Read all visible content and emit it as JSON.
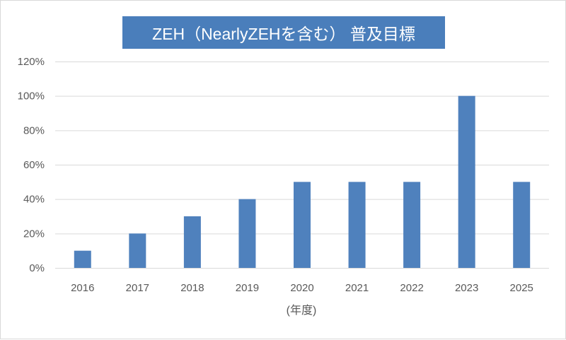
{
  "chart_data": {
    "type": "bar",
    "title": "ZEH（NearlyZEHを含む） 普及目標",
    "xlabel": "(年度)",
    "categories": [
      "2016",
      "2017",
      "2018",
      "2019",
      "2020",
      "2021",
      "2022",
      "2023",
      "2025"
    ],
    "values": [
      10,
      20,
      30,
      40,
      50,
      50,
      50,
      100,
      50
    ],
    "unit": "%",
    "ylim": [
      0,
      120
    ],
    "yticks": [
      0,
      20,
      40,
      60,
      80,
      100,
      120
    ],
    "yticklabels": [
      "0%",
      "20%",
      "40%",
      "60%",
      "80%",
      "100%",
      "120%"
    ],
    "grid": true,
    "legend": "none"
  },
  "colors": {
    "bar": "#4F81BD",
    "title_bg": "#4A7EBB",
    "title_text": "#FFFFFF",
    "gridline": "#D9D9D9",
    "tick_text": "#595959"
  }
}
